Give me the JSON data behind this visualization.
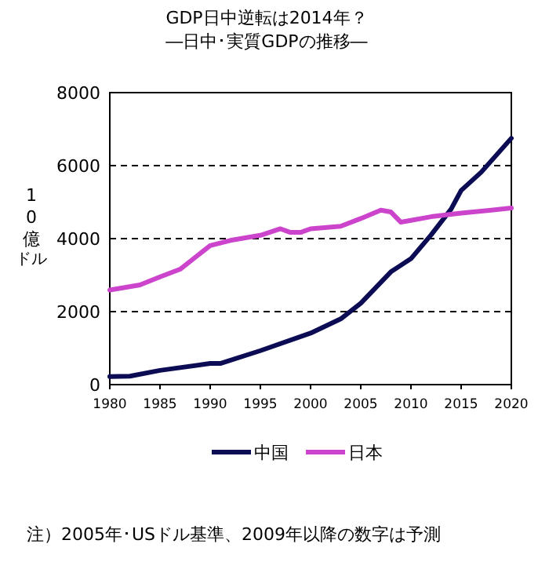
{
  "chart_data": {
    "type": "line",
    "title": "GDP日中逆転は2014年？",
    "subtitle": "―日中･実質GDPの推移―",
    "ylabel": "10億ドル",
    "xlim": [
      1980,
      2020
    ],
    "xticks": [
      1980,
      1985,
      1990,
      1995,
      2000,
      2005,
      2010,
      2015,
      2020
    ],
    "ylim": [
      0,
      8000
    ],
    "yticks": [
      0,
      2000,
      4000,
      6000,
      8000
    ],
    "grid": "y",
    "legend": "bottom",
    "marker": "none",
    "line_style": "solid",
    "series": [
      {
        "name": "中国",
        "color": "#0c0c55",
        "x": [
          1980,
          1982,
          1985,
          1990,
          1991,
          1995,
          2000,
          2003,
          2005,
          2008,
          2010,
          2012,
          2014,
          2015,
          2017,
          2020
        ],
        "values": [
          220,
          230,
          390,
          580,
          580,
          930,
          1410,
          1800,
          2230,
          3090,
          3450,
          4100,
          4810,
          5320,
          5820,
          6750
        ]
      },
      {
        "name": "日本",
        "color": "#cc44cc",
        "x": [
          1980,
          1983,
          1985,
          1987,
          1990,
          1992,
          1995,
          1997,
          1998,
          1999,
          2000,
          2003,
          2005,
          2007,
          2008,
          2009,
          2010,
          2012,
          2015,
          2018,
          2020
        ],
        "values": [
          2590,
          2730,
          2950,
          3160,
          3810,
          3950,
          4090,
          4270,
          4170,
          4170,
          4270,
          4340,
          4550,
          4780,
          4730,
          4450,
          4500,
          4600,
          4700,
          4780,
          4840
        ]
      }
    ],
    "annotations": [
      "注）2005年･USドル基準、2009年以降の数字は予測"
    ]
  }
}
